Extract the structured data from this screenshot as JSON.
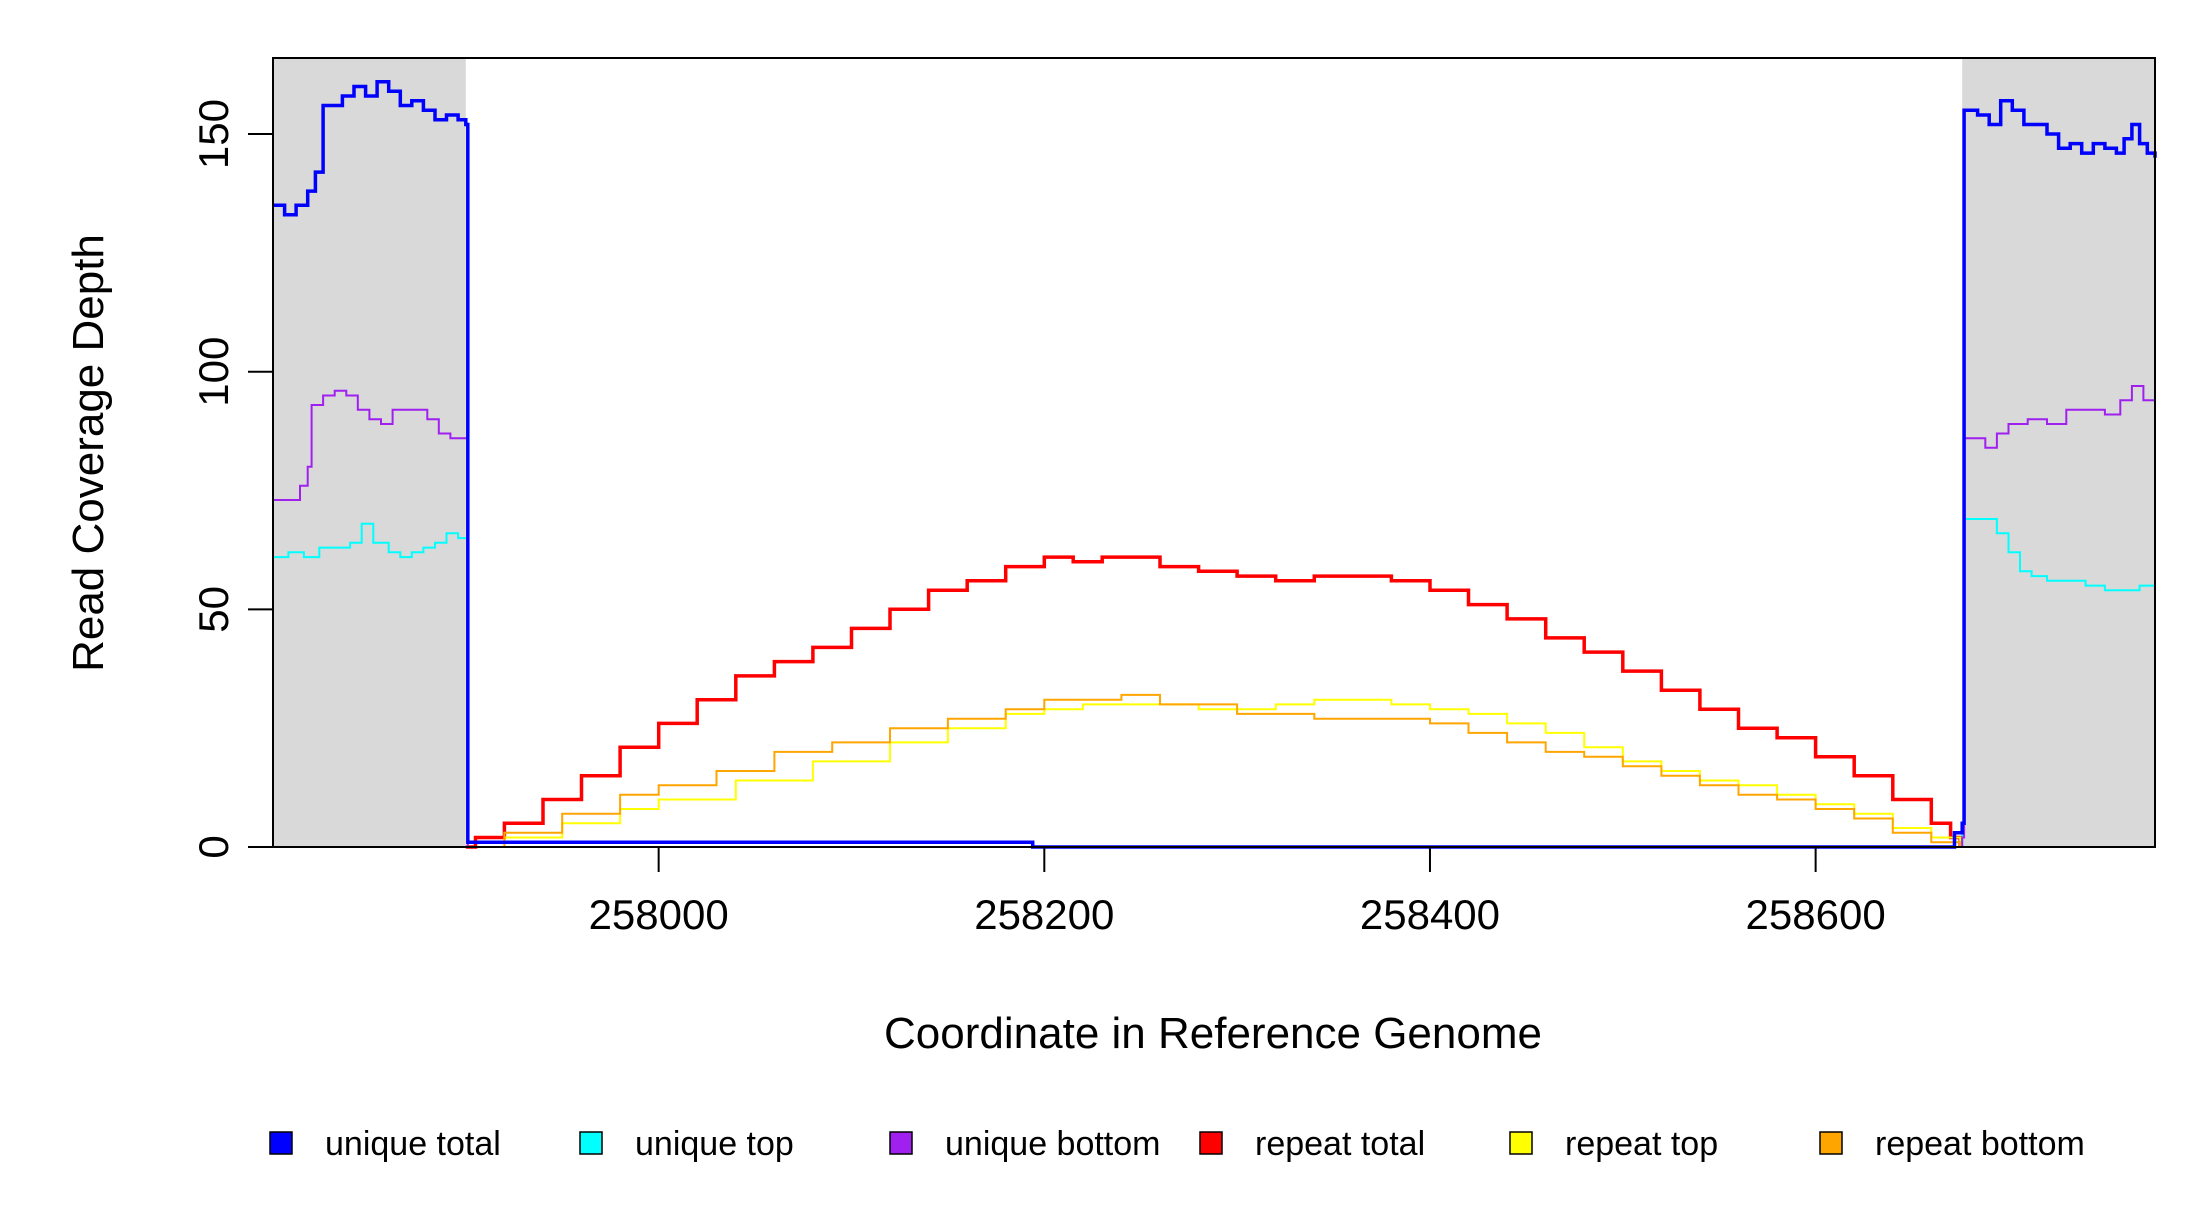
{
  "chart_data": {
    "type": "line",
    "title": "",
    "xlabel": "Coordinate in Reference Genome",
    "ylabel": "Read Coverage Depth",
    "xlim": [
      257800,
      258776
    ],
    "ylim": [
      0,
      166
    ],
    "x_ticks": [
      258000,
      258200,
      258400,
      258600
    ],
    "y_ticks": [
      0,
      50,
      100,
      150
    ],
    "grid": false,
    "legend_placement": "bottom",
    "shaded_regions": [
      [
        257800,
        257900
      ],
      [
        258676,
        258776
      ]
    ],
    "shade_color": "#d9d9d9",
    "series": [
      {
        "name": "unique total",
        "color": "#0000ff",
        "points": [
          [
            257800,
            135
          ],
          [
            257806,
            133
          ],
          [
            257812,
            135
          ],
          [
            257818,
            138
          ],
          [
            257822,
            142
          ],
          [
            257826,
            156
          ],
          [
            257830,
            156
          ],
          [
            257836,
            158
          ],
          [
            257842,
            160
          ],
          [
            257848,
            158
          ],
          [
            257854,
            161
          ],
          [
            257860,
            159
          ],
          [
            257866,
            156
          ],
          [
            257872,
            157
          ],
          [
            257878,
            155
          ],
          [
            257884,
            153
          ],
          [
            257890,
            154
          ],
          [
            257896,
            153
          ],
          [
            257900,
            152
          ],
          [
            257901,
            1
          ],
          [
            258193,
            1
          ],
          [
            258194,
            0
          ],
          [
            258671,
            0
          ],
          [
            258672,
            3
          ],
          [
            258676,
            5
          ],
          [
            258677,
            155
          ],
          [
            258684,
            154
          ],
          [
            258690,
            152
          ],
          [
            258696,
            157
          ],
          [
            258702,
            155
          ],
          [
            258708,
            152
          ],
          [
            258714,
            152
          ],
          [
            258720,
            150
          ],
          [
            258726,
            147
          ],
          [
            258732,
            148
          ],
          [
            258738,
            146
          ],
          [
            258744,
            148
          ],
          [
            258750,
            147
          ],
          [
            258756,
            146
          ],
          [
            258760,
            149
          ],
          [
            258764,
            152
          ],
          [
            258768,
            148
          ],
          [
            258772,
            146
          ],
          [
            258776,
            145
          ]
        ]
      },
      {
        "name": "unique top",
        "color": "#00ffff",
        "points": [
          [
            257800,
            61
          ],
          [
            257808,
            62
          ],
          [
            257816,
            61
          ],
          [
            257824,
            63
          ],
          [
            257832,
            63
          ],
          [
            257840,
            64
          ],
          [
            257846,
            68
          ],
          [
            257852,
            64
          ],
          [
            257860,
            62
          ],
          [
            257866,
            61
          ],
          [
            257872,
            62
          ],
          [
            257878,
            63
          ],
          [
            257884,
            64
          ],
          [
            257890,
            66
          ],
          [
            257896,
            65
          ],
          [
            257900,
            65
          ],
          [
            257901,
            0
          ],
          [
            258672,
            0
          ],
          [
            258676,
            3
          ],
          [
            258677,
            69
          ],
          [
            258688,
            69
          ],
          [
            258694,
            66
          ],
          [
            258700,
            62
          ],
          [
            258706,
            58
          ],
          [
            258712,
            57
          ],
          [
            258720,
            56
          ],
          [
            258730,
            56
          ],
          [
            258740,
            55
          ],
          [
            258750,
            54
          ],
          [
            258760,
            54
          ],
          [
            258768,
            55
          ],
          [
            258776,
            55
          ]
        ]
      },
      {
        "name": "unique bottom",
        "color": "#a020f0",
        "points": [
          [
            257800,
            73
          ],
          [
            257808,
            73
          ],
          [
            257814,
            76
          ],
          [
            257818,
            80
          ],
          [
            257820,
            93
          ],
          [
            257826,
            95
          ],
          [
            257832,
            96
          ],
          [
            257838,
            95
          ],
          [
            257844,
            92
          ],
          [
            257850,
            90
          ],
          [
            257856,
            89
          ],
          [
            257862,
            92
          ],
          [
            257868,
            92
          ],
          [
            257874,
            92
          ],
          [
            257880,
            90
          ],
          [
            257886,
            87
          ],
          [
            257892,
            86
          ],
          [
            257898,
            86
          ],
          [
            257900,
            86
          ],
          [
            257901,
            0
          ],
          [
            258672,
            0
          ],
          [
            258676,
            2
          ],
          [
            258677,
            86
          ],
          [
            258682,
            86
          ],
          [
            258688,
            84
          ],
          [
            258694,
            87
          ],
          [
            258700,
            89
          ],
          [
            258710,
            90
          ],
          [
            258720,
            89
          ],
          [
            258730,
            92
          ],
          [
            258740,
            92
          ],
          [
            258750,
            91
          ],
          [
            258758,
            94
          ],
          [
            258764,
            97
          ],
          [
            258770,
            94
          ],
          [
            258776,
            90
          ]
        ]
      },
      {
        "name": "repeat total",
        "color": "#ff0000",
        "points": [
          [
            257900,
            0
          ],
          [
            257905,
            2
          ],
          [
            257920,
            5
          ],
          [
            257940,
            10
          ],
          [
            257960,
            15
          ],
          [
            257980,
            21
          ],
          [
            258000,
            26
          ],
          [
            258020,
            31
          ],
          [
            258040,
            36
          ],
          [
            258060,
            39
          ],
          [
            258080,
            42
          ],
          [
            258100,
            46
          ],
          [
            258120,
            50
          ],
          [
            258140,
            54
          ],
          [
            258160,
            56
          ],
          [
            258180,
            59
          ],
          [
            258200,
            61
          ],
          [
            258215,
            60
          ],
          [
            258230,
            61
          ],
          [
            258240,
            61
          ],
          [
            258260,
            59
          ],
          [
            258280,
            58
          ],
          [
            258300,
            57
          ],
          [
            258320,
            56
          ],
          [
            258340,
            57
          ],
          [
            258360,
            57
          ],
          [
            258380,
            56
          ],
          [
            258400,
            54
          ],
          [
            258420,
            51
          ],
          [
            258440,
            48
          ],
          [
            258460,
            44
          ],
          [
            258480,
            41
          ],
          [
            258500,
            37
          ],
          [
            258520,
            33
          ],
          [
            258540,
            29
          ],
          [
            258560,
            25
          ],
          [
            258580,
            23
          ],
          [
            258600,
            19
          ],
          [
            258620,
            15
          ],
          [
            258640,
            10
          ],
          [
            258660,
            5
          ],
          [
            258670,
            2
          ],
          [
            258675,
            0
          ]
        ]
      },
      {
        "name": "repeat top",
        "color": "#ffff00",
        "points": [
          [
            257900,
            0
          ],
          [
            257920,
            2
          ],
          [
            257950,
            5
          ],
          [
            257980,
            8
          ],
          [
            258000,
            10
          ],
          [
            258040,
            14
          ],
          [
            258080,
            18
          ],
          [
            258120,
            22
          ],
          [
            258150,
            25
          ],
          [
            258180,
            28
          ],
          [
            258200,
            29
          ],
          [
            258220,
            30
          ],
          [
            258240,
            30
          ],
          [
            258260,
            30
          ],
          [
            258280,
            29
          ],
          [
            258300,
            29
          ],
          [
            258320,
            30
          ],
          [
            258340,
            31
          ],
          [
            258360,
            31
          ],
          [
            258380,
            30
          ],
          [
            258400,
            29
          ],
          [
            258420,
            28
          ],
          [
            258440,
            26
          ],
          [
            258460,
            24
          ],
          [
            258480,
            21
          ],
          [
            258500,
            18
          ],
          [
            258520,
            16
          ],
          [
            258540,
            14
          ],
          [
            258560,
            13
          ],
          [
            258580,
            11
          ],
          [
            258600,
            9
          ],
          [
            258620,
            7
          ],
          [
            258640,
            4
          ],
          [
            258660,
            2
          ],
          [
            258675,
            0
          ]
        ]
      },
      {
        "name": "repeat bottom",
        "color": "#ffa500",
        "points": [
          [
            257900,
            0
          ],
          [
            257920,
            3
          ],
          [
            257950,
            7
          ],
          [
            257980,
            11
          ],
          [
            258000,
            13
          ],
          [
            258030,
            16
          ],
          [
            258060,
            20
          ],
          [
            258090,
            22
          ],
          [
            258120,
            25
          ],
          [
            258150,
            27
          ],
          [
            258180,
            29
          ],
          [
            258200,
            31
          ],
          [
            258220,
            31
          ],
          [
            258240,
            32
          ],
          [
            258260,
            30
          ],
          [
            258280,
            30
          ],
          [
            258300,
            28
          ],
          [
            258320,
            28
          ],
          [
            258340,
            27
          ],
          [
            258360,
            27
          ],
          [
            258380,
            27
          ],
          [
            258400,
            26
          ],
          [
            258420,
            24
          ],
          [
            258440,
            22
          ],
          [
            258460,
            20
          ],
          [
            258480,
            19
          ],
          [
            258500,
            17
          ],
          [
            258520,
            15
          ],
          [
            258540,
            13
          ],
          [
            258560,
            11
          ],
          [
            258580,
            10
          ],
          [
            258600,
            8
          ],
          [
            258620,
            6
          ],
          [
            258640,
            3
          ],
          [
            258660,
            1
          ],
          [
            258675,
            0
          ]
        ]
      }
    ]
  }
}
